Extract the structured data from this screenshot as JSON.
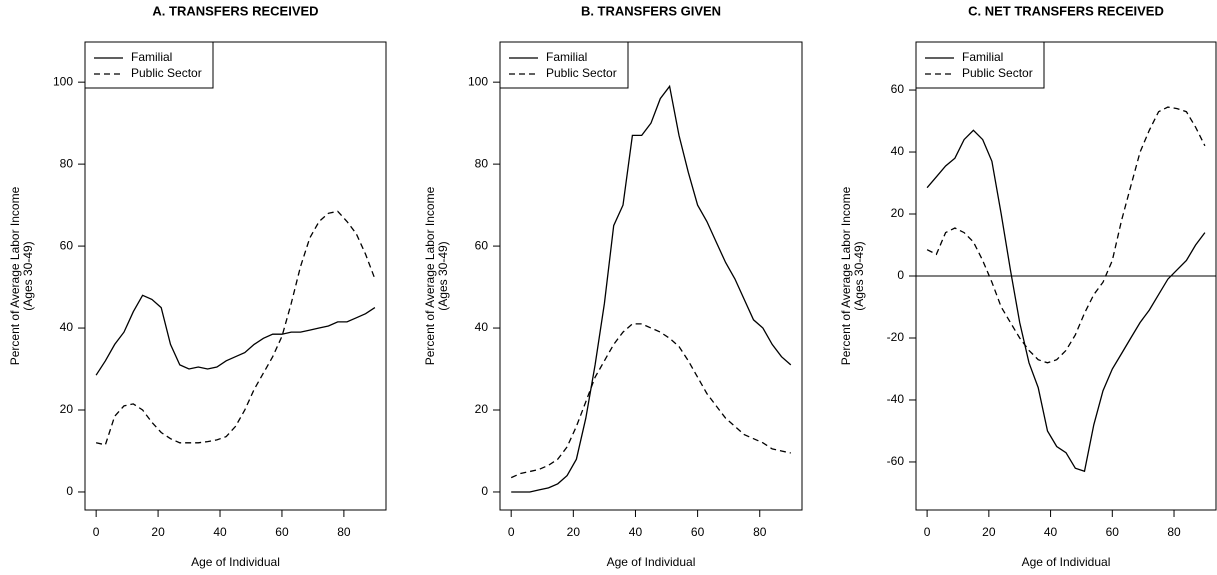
{
  "chart_data": [
    {
      "type": "line",
      "title": "A. TRANSFERS RECEIVED",
      "xlabel": "Age of Individual",
      "ylabel": "Percent of Average Labor Income",
      "ylabel_note": "(Ages 30-49)",
      "x": [
        0,
        3,
        6,
        9,
        12,
        15,
        18,
        21,
        24,
        27,
        30,
        33,
        36,
        39,
        42,
        45,
        48,
        51,
        54,
        57,
        60,
        63,
        66,
        69,
        72,
        75,
        78,
        81,
        84,
        87,
        90
      ],
      "series": [
        {
          "name": "Familial",
          "color": "#000000",
          "dash": "solid",
          "values": [
            28.5,
            32,
            36,
            39,
            44,
            48,
            47,
            45,
            36,
            31,
            30,
            30.5,
            30,
            30.5,
            32,
            33,
            34,
            36,
            37.5,
            38.5,
            38.5,
            39,
            39,
            39.5,
            40,
            40.5,
            41.5,
            41.5,
            42.5,
            43.5,
            45
          ]
        },
        {
          "name": "Public Sector",
          "color": "#000000",
          "dash": "dashed",
          "values": [
            12,
            11.5,
            18.5,
            21,
            21.5,
            20,
            17,
            14.5,
            13,
            12,
            12,
            12,
            12.3,
            12.7,
            13.5,
            16,
            20,
            25,
            29,
            33,
            38,
            46,
            55,
            62,
            66,
            68,
            68.5,
            66,
            63,
            58,
            52
          ]
        }
      ],
      "xlim": [
        -3.6,
        93.6
      ],
      "xticks": [
        0,
        20,
        40,
        60,
        80
      ],
      "ylim": [
        -4.4,
        109.8
      ],
      "yticks": [
        0,
        20,
        40,
        60,
        80,
        100
      ],
      "legend": "top-left"
    },
    {
      "type": "line",
      "title": "B. TRANSFERS GIVEN",
      "xlabel": "Age of Individual",
      "ylabel": "Percent of Average Labor Income",
      "ylabel_note": "(Ages 30-49)",
      "x": [
        0,
        3,
        6,
        9,
        12,
        15,
        18,
        21,
        24,
        27,
        30,
        33,
        36,
        39,
        42,
        45,
        48,
        51,
        54,
        57,
        60,
        63,
        66,
        69,
        72,
        75,
        78,
        81,
        84,
        87,
        90
      ],
      "series": [
        {
          "name": "Familial",
          "color": "#000000",
          "dash": "solid",
          "values": [
            0,
            0,
            0,
            0.5,
            1,
            2,
            4,
            8,
            18,
            31,
            46,
            65,
            70,
            87,
            87,
            90,
            96,
            99,
            87,
            78,
            70,
            66,
            61,
            56,
            52,
            47,
            42,
            40,
            36,
            33,
            31
          ]
        },
        {
          "name": "Public Sector",
          "color": "#000000",
          "dash": "dashed",
          "values": [
            3.5,
            4.5,
            5,
            5.5,
            6.5,
            8,
            11,
            16,
            22,
            28,
            32,
            36,
            39,
            41,
            41,
            40,
            39,
            37.5,
            35.5,
            32,
            28,
            24,
            21,
            18,
            16,
            14,
            13,
            12,
            10.5,
            10,
            9.5
          ]
        }
      ],
      "xlim": [
        -3.6,
        93.6
      ],
      "xticks": [
        0,
        20,
        40,
        60,
        80
      ],
      "ylim": [
        -4.4,
        109.8
      ],
      "yticks": [
        0,
        20,
        40,
        60,
        80,
        100
      ],
      "legend": "top-left"
    },
    {
      "type": "line",
      "title": "C. NET TRANSFERS RECEIVED",
      "xlabel": "Age of Individual",
      "ylabel": "Percent of Average Labor Income",
      "ylabel_note": "(Ages 30-49)",
      "x": [
        0,
        3,
        6,
        9,
        12,
        15,
        18,
        21,
        24,
        27,
        30,
        33,
        36,
        39,
        42,
        45,
        48,
        51,
        54,
        57,
        60,
        63,
        66,
        69,
        72,
        75,
        78,
        81,
        84,
        87,
        90
      ],
      "series": [
        {
          "name": "Familial",
          "color": "#000000",
          "dash": "solid",
          "values": [
            28.5,
            32,
            35.5,
            38,
            44,
            47,
            44,
            37,
            20,
            2,
            -15,
            -28,
            -36,
            -50,
            -55,
            -57,
            -62,
            -63,
            -48,
            -37,
            -30,
            -25,
            -20,
            -15,
            -11,
            -6,
            -1,
            2,
            5,
            10,
            14
          ]
        },
        {
          "name": "Public Sector",
          "color": "#000000",
          "dash": "dashed",
          "values": [
            8.5,
            7,
            14,
            15.5,
            14,
            11,
            5,
            -2,
            -10,
            -15,
            -20,
            -24,
            -27,
            -28,
            -27,
            -24,
            -19,
            -12,
            -6,
            -2,
            5,
            18,
            29,
            40,
            47,
            53,
            54.5,
            54,
            53,
            48,
            42
          ]
        }
      ],
      "xlim": [
        -3.6,
        93.6
      ],
      "xticks": [
        0,
        20,
        40,
        60,
        80
      ],
      "ylim": [
        -75.5,
        75.5
      ],
      "yticks": [
        -60,
        -40,
        -20,
        0,
        20,
        40,
        60
      ],
      "hline": 0,
      "legend": "top-left"
    }
  ]
}
